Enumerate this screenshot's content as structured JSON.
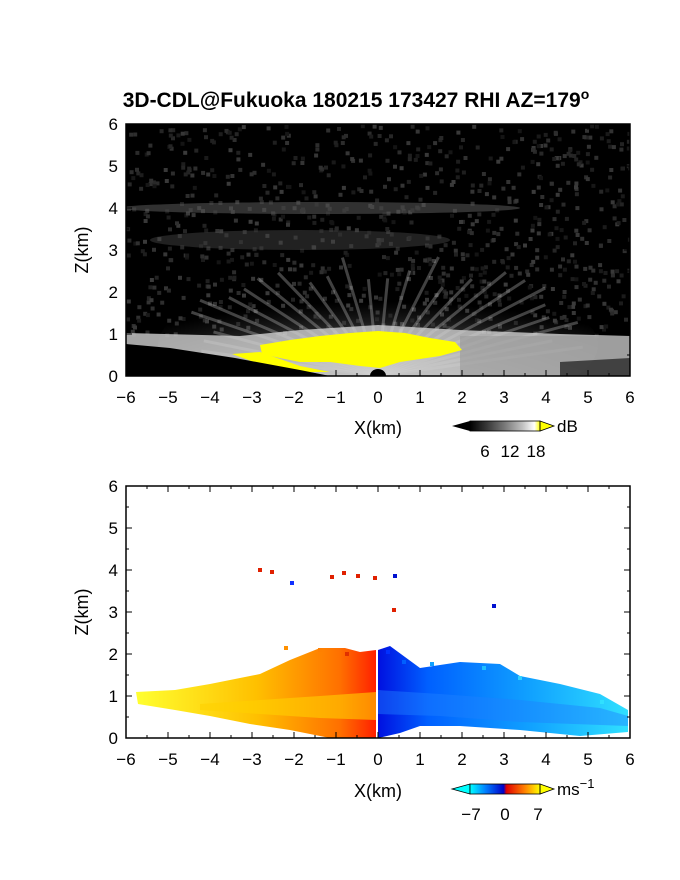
{
  "title_main": "3D-CDL@Fukuoka 180215 173427 RHI AZ=179",
  "title_sup": "o",
  "chart_data": [
    {
      "type": "heatmap",
      "quantity": "reflectivity",
      "xlabel": "X(km)",
      "ylabel": "Z(km)",
      "xlim": [
        -6,
        6
      ],
      "ylim": [
        0,
        6
      ],
      "xticks": [
        "−6",
        "−5",
        "−4",
        "−3",
        "−2",
        "−1",
        "0",
        "1",
        "2",
        "3",
        "4",
        "5",
        "6"
      ],
      "yticks": [
        "0",
        "1",
        "2",
        "3",
        "4",
        "5",
        "6"
      ],
      "colorbar": {
        "unit": "dB",
        "ticks": [
          "6",
          "12",
          "18"
        ],
        "colors": [
          "#000000",
          "#3a3a3a",
          "#7a7a7a",
          "#b8b8b8",
          "#ffffff",
          "#ffff00"
        ]
      },
      "background_color": "#1a1a1a",
      "saturation_color": "#ffff00",
      "features": {
        "faint_layers_km": [
          4.0,
          3.2
        ],
        "bright_layer_top_km": 1.0,
        "saturated_region_x": [
          -2.8,
          2.0
        ]
      }
    },
    {
      "type": "heatmap",
      "quantity": "radial velocity",
      "xlabel": "X(km)",
      "ylabel": "Z(km)",
      "xlim": [
        -6,
        6
      ],
      "ylim": [
        0,
        6
      ],
      "xticks": [
        "−6",
        "−5",
        "−4",
        "−3",
        "−2",
        "−1",
        "0",
        "1",
        "2",
        "3",
        "4",
        "5",
        "6"
      ],
      "yticks": [
        "0",
        "1",
        "2",
        "3",
        "4",
        "5",
        "6"
      ],
      "colorbar": {
        "unit": "ms",
        "unit_sup": "−1",
        "ticks": [
          "−7",
          "0",
          "7"
        ],
        "colors": [
          "#00ffff",
          "#0040ff",
          "#0000cc",
          "#ff0000",
          "#ff8000",
          "#ffff00"
        ]
      },
      "negative_color": "#1e6fff",
      "positive_color": "#ff9000",
      "features": {
        "echo_top_km": 2.0,
        "left_extent_km": -5.9,
        "right_extent_km": 6.0
      }
    }
  ]
}
